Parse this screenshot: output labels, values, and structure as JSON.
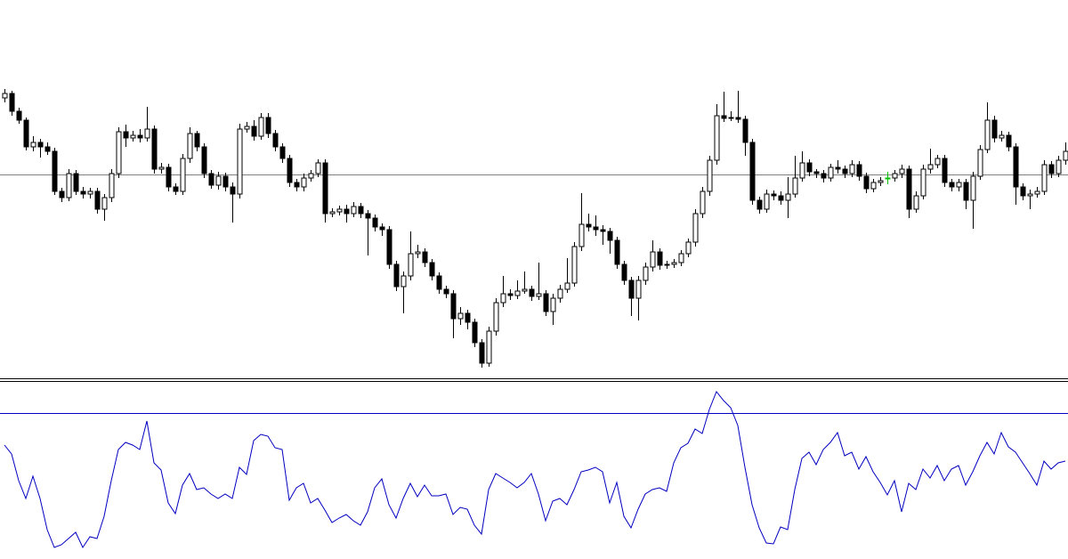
{
  "chart_data": [
    {
      "type": "candlestick",
      "ylim": [
        0,
        320
      ],
      "reference_line": 219,
      "reference_color": "#808080",
      "up_color": "#ffffff",
      "down_color": "#000000",
      "doji_color": "#00c000",
      "outline_color": "#000000",
      "ohlc": [
        [
          305,
          315,
          300,
          310
        ],
        [
          310,
          313,
          285,
          290
        ],
        [
          290,
          294,
          276,
          280
        ],
        [
          280,
          283,
          246,
          250
        ],
        [
          250,
          262,
          245,
          255
        ],
        [
          255,
          259,
          238,
          250
        ],
        [
          250,
          255,
          241,
          245
        ],
        [
          245,
          249,
          196,
          200
        ],
        [
          200,
          204,
          188,
          193
        ],
        [
          193,
          225,
          189,
          220
        ],
        [
          220,
          224,
          196,
          200
        ],
        [
          200,
          205,
          192,
          197
        ],
        [
          197,
          204,
          192,
          200
        ],
        [
          200,
          204,
          175,
          180
        ],
        [
          180,
          197,
          167,
          193
        ],
        [
          193,
          225,
          188,
          220
        ],
        [
          220,
          272,
          215,
          267
        ],
        [
          267,
          275,
          250,
          260
        ],
        [
          260,
          268,
          256,
          263
        ],
        [
          263,
          270,
          255,
          260
        ],
        [
          260,
          295,
          256,
          270
        ],
        [
          270,
          274,
          220,
          225
        ],
        [
          225,
          232,
          220,
          227
        ],
        [
          227,
          231,
          200,
          205
        ],
        [
          205,
          209,
          196,
          200
        ],
        [
          200,
          242,
          196,
          237
        ],
        [
          237,
          272,
          232,
          265
        ],
        [
          265,
          268,
          245,
          250
        ],
        [
          250,
          254,
          215,
          220
        ],
        [
          220,
          224,
          203,
          207
        ],
        [
          207,
          222,
          202,
          217
        ],
        [
          217,
          221,
          200,
          205
        ],
        [
          205,
          210,
          165,
          197
        ],
        [
          197,
          276,
          192,
          270
        ],
        [
          270,
          278,
          266,
          273
        ],
        [
          273,
          280,
          257,
          262
        ],
        [
          262,
          288,
          258,
          283
        ],
        [
          283,
          288,
          260,
          265
        ],
        [
          265,
          269,
          245,
          250
        ],
        [
          250,
          254,
          232,
          237
        ],
        [
          237,
          241,
          205,
          210
        ],
        [
          210,
          214,
          200,
          205
        ],
        [
          205,
          220,
          200,
          215
        ],
        [
          215,
          224,
          211,
          220
        ],
        [
          220,
          236,
          216,
          232
        ],
        [
          232,
          236,
          165,
          175
        ],
        [
          175,
          181,
          171,
          177
        ],
        [
          177,
          184,
          173,
          180
        ],
        [
          180,
          185,
          165,
          175
        ],
        [
          175,
          188,
          171,
          183
        ],
        [
          183,
          187,
          170,
          175
        ],
        [
          175,
          179,
          128,
          170
        ],
        [
          170,
          174,
          155,
          160
        ],
        [
          160,
          164,
          150,
          157
        ],
        [
          157,
          161,
          113,
          118
        ],
        [
          118,
          122,
          88,
          93
        ],
        [
          93,
          110,
          63,
          105
        ],
        [
          105,
          155,
          100,
          130
        ],
        [
          130,
          140,
          125,
          132
        ],
        [
          132,
          136,
          115,
          120
        ],
        [
          120,
          124,
          100,
          105
        ],
        [
          105,
          109,
          85,
          90
        ],
        [
          90,
          94,
          80,
          85
        ],
        [
          85,
          89,
          35,
          57
        ],
        [
          57,
          70,
          50,
          63
        ],
        [
          63,
          67,
          45,
          53
        ],
        [
          53,
          57,
          25,
          30
        ],
        [
          30,
          34,
          2,
          7
        ],
        [
          7,
          48,
          3,
          43
        ],
        [
          43,
          80,
          38,
          75
        ],
        [
          75,
          105,
          70,
          85
        ],
        [
          85,
          90,
          78,
          83
        ],
        [
          83,
          100,
          79,
          88
        ],
        [
          88,
          110,
          85,
          90
        ],
        [
          90,
          94,
          77,
          82
        ],
        [
          82,
          120,
          78,
          85
        ],
        [
          85,
          89,
          60,
          65
        ],
        [
          65,
          85,
          50,
          80
        ],
        [
          80,
          95,
          75,
          90
        ],
        [
          90,
          125,
          86,
          97
        ],
        [
          97,
          143,
          93,
          138
        ],
        [
          138,
          198,
          133,
          163
        ],
        [
          163,
          175,
          155,
          160
        ],
        [
          160,
          173,
          150,
          157
        ],
        [
          157,
          162,
          140,
          155
        ],
        [
          155,
          159,
          130,
          145
        ],
        [
          145,
          149,
          113,
          118
        ],
        [
          118,
          122,
          95,
          100
        ],
        [
          100,
          104,
          60,
          80
        ],
        [
          80,
          105,
          55,
          100
        ],
        [
          100,
          120,
          95,
          115
        ],
        [
          115,
          145,
          110,
          132
        ],
        [
          132,
          136,
          112,
          117
        ],
        [
          117,
          122,
          113,
          118
        ],
        [
          118,
          124,
          114,
          120
        ],
        [
          120,
          134,
          116,
          130
        ],
        [
          130,
          147,
          126,
          143
        ],
        [
          143,
          180,
          138,
          175
        ],
        [
          175,
          205,
          170,
          200
        ],
        [
          200,
          240,
          195,
          235
        ],
        [
          235,
          298,
          230,
          285
        ],
        [
          285,
          312,
          278,
          282
        ],
        [
          282,
          290,
          279,
          283
        ],
        [
          283,
          313,
          277,
          281
        ],
        [
          281,
          285,
          240,
          255
        ],
        [
          255,
          259,
          185,
          190
        ],
        [
          190,
          194,
          175,
          180
        ],
        [
          180,
          202,
          176,
          197
        ],
        [
          197,
          201,
          190,
          195
        ],
        [
          195,
          200,
          185,
          190
        ],
        [
          190,
          216,
          170,
          197
        ],
        [
          197,
          240,
          193,
          215
        ],
        [
          215,
          245,
          211,
          232
        ],
        [
          232,
          236,
          217,
          222
        ],
        [
          222,
          225,
          215,
          220
        ],
        [
          220,
          224,
          210,
          215
        ],
        [
          215,
          231,
          211,
          227
        ],
        [
          227,
          235,
          220,
          225
        ],
        [
          225,
          229,
          215,
          220
        ],
        [
          220,
          235,
          216,
          230
        ],
        [
          230,
          234,
          212,
          217
        ],
        [
          217,
          221,
          198,
          203
        ],
        [
          203,
          214,
          199,
          210
        ],
        [
          210,
          216,
          206,
          212
        ],
        [
          215,
          222,
          208,
          215
        ],
        [
          215,
          224,
          211,
          220
        ],
        [
          220,
          230,
          215,
          225
        ],
        [
          225,
          229,
          170,
          180
        ],
        [
          180,
          200,
          176,
          195
        ],
        [
          195,
          230,
          191,
          225
        ],
        [
          225,
          248,
          220,
          230
        ],
        [
          230,
          241,
          226,
          237
        ],
        [
          237,
          241,
          205,
          210
        ],
        [
          210,
          214,
          200,
          205
        ],
        [
          205,
          214,
          200,
          210
        ],
        [
          210,
          214,
          180,
          190
        ],
        [
          190,
          222,
          158,
          217
        ],
        [
          217,
          252,
          213,
          247
        ],
        [
          247,
          300,
          243,
          280
        ],
        [
          280,
          285,
          255,
          260
        ],
        [
          260,
          268,
          256,
          263
        ],
        [
          263,
          267,
          245,
          250
        ],
        [
          250,
          254,
          185,
          205
        ],
        [
          205,
          209,
          190,
          195
        ],
        [
          195,
          202,
          180,
          197
        ],
        [
          197,
          205,
          193,
          200
        ],
        [
          200,
          235,
          196,
          230
        ],
        [
          230,
          234,
          215,
          220
        ],
        [
          220,
          240,
          216,
          235
        ],
        [
          235,
          255,
          230,
          245
        ]
      ]
    },
    {
      "type": "line",
      "ylim": [
        0,
        99
      ],
      "level": 82,
      "level_color": "#0000c0",
      "color": "#0000c0",
      "values": [
        64,
        59,
        44,
        34,
        46.5,
        34,
        16.5,
        6.5,
        8,
        11.5,
        15,
        6.5,
        12.5,
        11.5,
        24,
        44,
        61.5,
        65.5,
        64,
        61.5,
        77.5,
        54,
        50,
        31.5,
        25.5,
        41.5,
        48,
        39,
        40,
        36.5,
        34,
        36.5,
        34,
        51.5,
        47.5,
        66.5,
        70,
        69,
        62.5,
        61.5,
        33,
        40,
        42.5,
        31.5,
        34,
        27.5,
        20.5,
        23,
        25,
        21.5,
        19,
        26.5,
        40,
        45,
        30.5,
        23,
        34,
        42.5,
        35,
        41.5,
        35.5,
        35.5,
        36.5,
        25,
        29,
        28,
        19,
        14,
        39,
        48,
        45.5,
        43,
        40,
        43,
        48,
        36.5,
        21.5,
        32.5,
        34,
        30.5,
        39,
        49,
        50,
        51.5,
        49,
        31.5,
        43,
        24,
        17.5,
        28,
        36.5,
        39,
        40,
        38,
        54,
        62.5,
        65,
        73,
        70.5,
        84,
        94,
        89,
        85,
        75,
        51.5,
        30.5,
        17.5,
        9,
        8.5,
        18,
        16.5,
        39,
        56.5,
        60,
        53,
        61.5,
        65.5,
        71,
        58,
        60,
        50.5,
        57.5,
        49,
        43,
        36,
        44,
        26.5,
        42.5,
        39,
        50.5,
        45.5,
        52.5,
        44,
        50.5,
        52.5,
        41.5,
        49,
        58,
        65.5,
        59,
        71,
        63,
        60,
        54,
        48,
        41.5,
        55,
        50.5,
        54,
        55
      ]
    }
  ]
}
